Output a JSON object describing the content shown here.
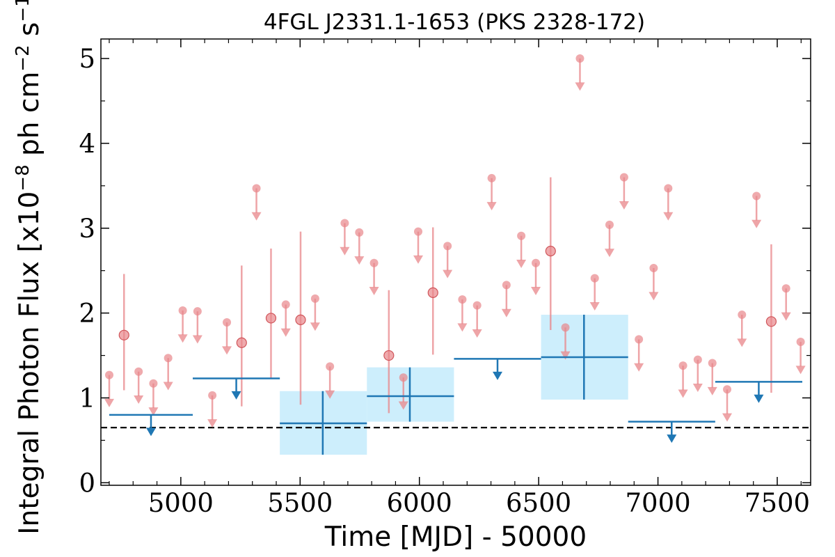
{
  "chart_data": {
    "type": "scatter",
    "title": "4FGL J2331.1-1653 (PKS 2328-172)",
    "xlabel": "Time [MJD] - 50000",
    "ylabel": {
      "prefix": "Integral Photon Flux [x10",
      "exp1": "−8",
      "mid": " ph cm",
      "exp2": "−2",
      "mid2": " s",
      "exp3": "−1",
      "suffix": "]"
    },
    "xlim": [
      4665,
      7640
    ],
    "ylim": [
      -0.03,
      5.23
    ],
    "xticks": [
      5000,
      5500,
      6000,
      6500,
      7000,
      7500
    ],
    "xtick_labels": [
      "5000",
      "5500",
      "6000",
      "6500",
      "7000",
      "7500"
    ],
    "yticks": [
      0,
      1,
      2,
      3,
      4,
      5
    ],
    "ytick_labels": [
      "0",
      "1",
      "2",
      "3",
      "4",
      "5"
    ],
    "grid": false,
    "baseline_dashed": 0.65,
    "colors": {
      "fine_bins": "#e8868a",
      "coarse_bins": "#1f77b4",
      "coarse_fill": "#cdeefc",
      "baseline": "#000000"
    },
    "coarse_bins": [
      {
        "x0": 4700,
        "x1": 5050,
        "y": 0.8,
        "upper_limit": true
      },
      {
        "x0": 5050,
        "x1": 5415,
        "y": 1.23,
        "upper_limit": true
      },
      {
        "x0": 5415,
        "x1": 5780,
        "y": 0.7,
        "upper_limit": false,
        "x": 5595,
        "ylo": 0.33,
        "yhi": 1.08
      },
      {
        "x0": 5780,
        "x1": 6145,
        "y": 1.02,
        "upper_limit": false,
        "x": 5960,
        "ylo": 0.72,
        "yhi": 1.36
      },
      {
        "x0": 6145,
        "x1": 6510,
        "y": 1.46,
        "upper_limit": true
      },
      {
        "x0": 6510,
        "x1": 6875,
        "y": 1.48,
        "upper_limit": false,
        "x": 6690,
        "ylo": 0.98,
        "yhi": 1.98
      },
      {
        "x0": 6875,
        "x1": 7240,
        "y": 0.72,
        "upper_limit": true
      },
      {
        "x0": 7240,
        "x1": 7605,
        "y": 1.19,
        "upper_limit": true
      }
    ],
    "fine_bins": [
      {
        "x": 4700,
        "y": 1.27,
        "upper_limit": true
      },
      {
        "x": 4762,
        "y": 1.74,
        "upper_limit": false,
        "ylo": 1.09,
        "yhi": 2.46
      },
      {
        "x": 4823,
        "y": 1.31,
        "upper_limit": true
      },
      {
        "x": 4885,
        "y": 1.17,
        "upper_limit": true
      },
      {
        "x": 4947,
        "y": 1.47,
        "upper_limit": true
      },
      {
        "x": 5008,
        "y": 2.03,
        "upper_limit": true
      },
      {
        "x": 5070,
        "y": 2.02,
        "upper_limit": true
      },
      {
        "x": 5132,
        "y": 1.03,
        "upper_limit": true
      },
      {
        "x": 5193,
        "y": 1.89,
        "upper_limit": true
      },
      {
        "x": 5255,
        "y": 1.65,
        "upper_limit": false,
        "ylo": 0.9,
        "yhi": 2.56
      },
      {
        "x": 5317,
        "y": 3.47,
        "upper_limit": true
      },
      {
        "x": 5378,
        "y": 1.94,
        "upper_limit": false,
        "ylo": 1.23,
        "yhi": 2.76
      },
      {
        "x": 5440,
        "y": 2.1,
        "upper_limit": true
      },
      {
        "x": 5502,
        "y": 1.92,
        "upper_limit": false,
        "ylo": 0.92,
        "yhi": 2.96
      },
      {
        "x": 5563,
        "y": 2.17,
        "upper_limit": true
      },
      {
        "x": 5625,
        "y": 1.37,
        "upper_limit": true
      },
      {
        "x": 5687,
        "y": 3.06,
        "upper_limit": true
      },
      {
        "x": 5748,
        "y": 2.95,
        "upper_limit": true
      },
      {
        "x": 5810,
        "y": 2.59,
        "upper_limit": true
      },
      {
        "x": 5872,
        "y": 1.5,
        "upper_limit": false,
        "ylo": 0.82,
        "yhi": 2.27
      },
      {
        "x": 5933,
        "y": 1.24,
        "upper_limit": true
      },
      {
        "x": 5995,
        "y": 2.96,
        "upper_limit": true
      },
      {
        "x": 6057,
        "y": 2.24,
        "upper_limit": false,
        "ylo": 1.51,
        "yhi": 3.01
      },
      {
        "x": 6118,
        "y": 2.79,
        "upper_limit": true
      },
      {
        "x": 6180,
        "y": 2.16,
        "upper_limit": true
      },
      {
        "x": 6242,
        "y": 2.09,
        "upper_limit": true
      },
      {
        "x": 6303,
        "y": 3.59,
        "upper_limit": true
      },
      {
        "x": 6365,
        "y": 2.33,
        "upper_limit": true
      },
      {
        "x": 6427,
        "y": 2.91,
        "upper_limit": true
      },
      {
        "x": 6488,
        "y": 2.59,
        "upper_limit": true
      },
      {
        "x": 6550,
        "y": 2.73,
        "upper_limit": false,
        "ylo": 1.8,
        "yhi": 3.6
      },
      {
        "x": 6612,
        "y": 1.83,
        "upper_limit": true
      },
      {
        "x": 6673,
        "y": 5.0,
        "upper_limit": true
      },
      {
        "x": 6735,
        "y": 2.41,
        "upper_limit": true
      },
      {
        "x": 6797,
        "y": 3.04,
        "upper_limit": true
      },
      {
        "x": 6858,
        "y": 3.6,
        "upper_limit": true
      },
      {
        "x": 6920,
        "y": 1.69,
        "upper_limit": true
      },
      {
        "x": 6982,
        "y": 2.53,
        "upper_limit": true
      },
      {
        "x": 7043,
        "y": 3.47,
        "upper_limit": true
      },
      {
        "x": 7105,
        "y": 1.38,
        "upper_limit": true
      },
      {
        "x": 7167,
        "y": 1.45,
        "upper_limit": true
      },
      {
        "x": 7228,
        "y": 1.41,
        "upper_limit": true
      },
      {
        "x": 7290,
        "y": 1.1,
        "upper_limit": true
      },
      {
        "x": 7352,
        "y": 1.98,
        "upper_limit": true
      },
      {
        "x": 7413,
        "y": 3.38,
        "upper_limit": true
      },
      {
        "x": 7475,
        "y": 1.9,
        "upper_limit": false,
        "ylo": 1.06,
        "yhi": 2.81
      },
      {
        "x": 7537,
        "y": 2.29,
        "upper_limit": true
      },
      {
        "x": 7598,
        "y": 1.66,
        "upper_limit": true
      }
    ]
  }
}
